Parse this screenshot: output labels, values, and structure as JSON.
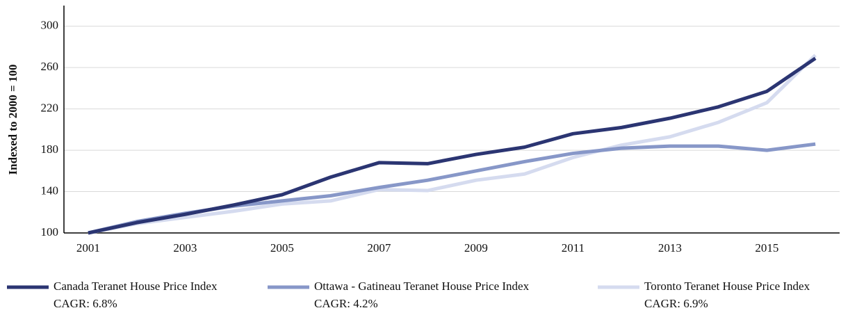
{
  "chart_data": {
    "type": "line",
    "y_label": "Indexed to 2000 = 100",
    "x": [
      2001,
      2002,
      2003,
      2004,
      2005,
      2006,
      2007,
      2008,
      2009,
      2010,
      2011,
      2012,
      2013,
      2014,
      2015,
      2016
    ],
    "series": [
      {
        "name": "Canada Teranet House Price Index",
        "cagr_label": "CAGR: 6.8%",
        "color": "#2b3572",
        "values": [
          100,
          110,
          118,
          127,
          137,
          154,
          168,
          167,
          176,
          183,
          196,
          202,
          211,
          222,
          237,
          269
        ]
      },
      {
        "name": "Ottawa - Gatineau Teranet House Price Index",
        "cagr_label": "CAGR: 4.2%",
        "color": "#8797c8",
        "values": [
          100,
          111,
          119,
          126,
          131,
          136,
          144,
          151,
          160,
          169,
          177,
          182,
          184,
          184,
          180,
          186
        ]
      },
      {
        "name": "Toronto Teranet House Price Index",
        "cagr_label": "CAGR: 6.9%",
        "color": "#d5dbef",
        "values": [
          100,
          109,
          115,
          121,
          128,
          131,
          142,
          141,
          151,
          157,
          173,
          185,
          193,
          207,
          226,
          272
        ]
      }
    ],
    "xlim": [
      2000.5,
      2016.5
    ],
    "xticks": [
      2001,
      2003,
      2005,
      2007,
      2009,
      2011,
      2013,
      2015
    ],
    "ylim": [
      100,
      320
    ],
    "yticks": [
      100,
      140,
      180,
      220,
      260,
      300
    ],
    "grid": true,
    "legend": "bottom"
  }
}
